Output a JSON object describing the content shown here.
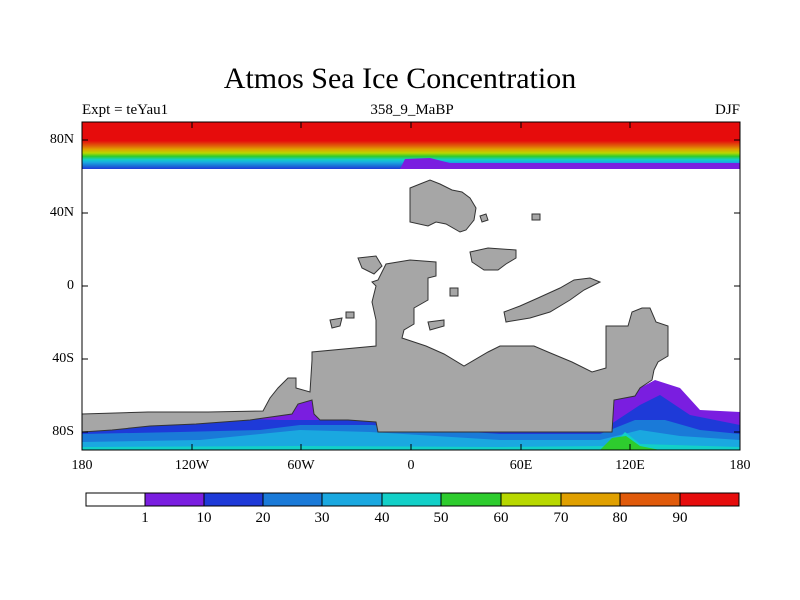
{
  "title": "Atmos Sea Ice Concentration",
  "left_label": "Expt = teYau1",
  "center_label": "358_9_MaBP",
  "right_label": "DJF",
  "x_ticks": [
    "180",
    "120W",
    "60W",
    "0",
    "60E",
    "120E",
    "180"
  ],
  "y_ticks": [
    "80N",
    "40N",
    "0",
    "40S",
    "80S"
  ],
  "colorbar": {
    "colors": [
      "#ffffff",
      "#7a1ee0",
      "#1e3ad8",
      "#1a7ad8",
      "#1aa8e0",
      "#12d0c8",
      "#2ecc2e",
      "#b8d800",
      "#e0a000",
      "#e05a0a",
      "#e60c0c"
    ],
    "labels": [
      "1",
      "10",
      "20",
      "30",
      "40",
      "50",
      "60",
      "70",
      "80",
      "90"
    ]
  },
  "chart_data": {
    "type": "heatmap",
    "title": "Atmos Sea Ice Concentration",
    "variable": "sea ice concentration (%)",
    "experiment": "teYau1",
    "period": "358_9_MaBP",
    "season": "DJF",
    "xlim": [
      -180,
      180
    ],
    "ylim": [
      -90,
      90
    ],
    "levels": [
      1,
      10,
      20,
      30,
      40,
      50,
      60,
      70,
      80,
      90
    ],
    "land_color": "#a6a6a6",
    "arctic_ice": {
      "full_cover_above_lat": 80,
      "edge_lat": 67
    },
    "antarctic_ice": {
      "edge_lat": -70,
      "typical_concentration": [
        1,
        40
      ]
    }
  }
}
